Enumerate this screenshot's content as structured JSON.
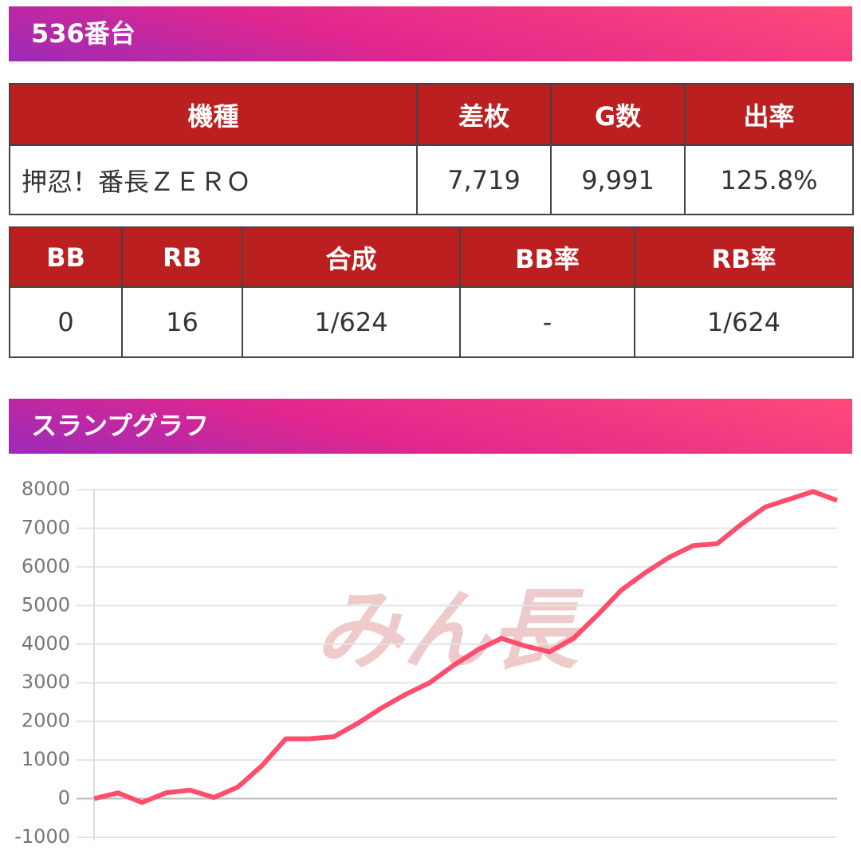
{
  "header": {
    "title": "536番台"
  },
  "table1": {
    "headers": [
      "機種",
      "差枚",
      "G数",
      "出率"
    ],
    "rows": [
      [
        "押忍！番長ＺＥＲＯ",
        "7,719",
        "9,991",
        "125.8%"
      ]
    ]
  },
  "table2": {
    "headers": [
      "BB",
      "RB",
      "合成",
      "BB率",
      "RB率"
    ],
    "rows": [
      [
        "0",
        "16",
        "1/624",
        "-",
        "1/624"
      ]
    ]
  },
  "graph_title": "スランプグラフ",
  "watermark": "みん長",
  "chart_data": {
    "type": "line",
    "color": "#ff4d6d",
    "grid": true,
    "values": [
      0,
      150,
      -100,
      150,
      220,
      30,
      300,
      850,
      1550,
      1550,
      1600,
      1950,
      2350,
      2700,
      3000,
      3450,
      3850,
      4150,
      3950,
      3800,
      4150,
      4750,
      5400,
      5850,
      6250,
      6550,
      6600,
      7100,
      7550,
      7750,
      7950,
      7719
    ],
    "ylim": [
      -1000,
      8000
    ],
    "yticks": [
      -1000,
      0,
      1000,
      2000,
      3000,
      4000,
      5000,
      6000,
      7000,
      8000
    ]
  }
}
